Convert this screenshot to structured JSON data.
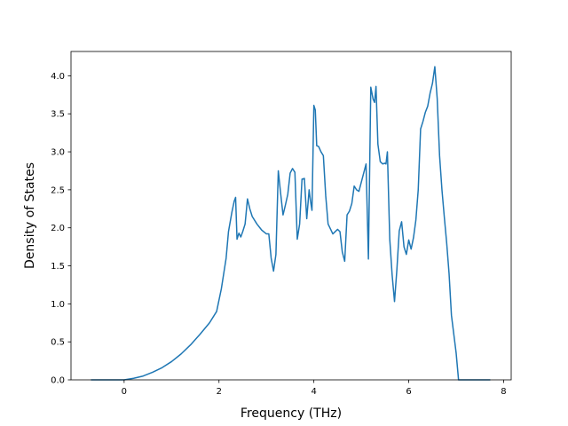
{
  "chart_data": {
    "type": "line",
    "xlabel": "Frequency (THz)",
    "ylabel": "Density of States",
    "xlim": [
      -1.12,
      8.16
    ],
    "ylim": [
      0.0,
      4.32
    ],
    "xticks": [
      0,
      2,
      4,
      6,
      8
    ],
    "yticks": [
      0.0,
      0.5,
      1.0,
      1.5,
      2.0,
      2.5,
      3.0,
      3.5,
      4.0
    ],
    "xtick_labels": [
      "0",
      "2",
      "4",
      "6",
      "8"
    ],
    "ytick_labels": [
      "0.0",
      "0.5",
      "1.0",
      "1.5",
      "2.0",
      "2.5",
      "3.0",
      "3.5",
      "4.0"
    ],
    "grid": false,
    "series": [
      {
        "color": "#1f77b4",
        "x": [
          -0.7,
          0.0,
          0.2,
          0.4,
          0.6,
          0.8,
          1.0,
          1.2,
          1.4,
          1.6,
          1.8,
          1.95,
          2.05,
          2.15,
          2.2,
          2.27,
          2.32,
          2.35,
          2.38,
          2.42,
          2.46,
          2.5,
          2.55,
          2.6,
          2.65,
          2.7,
          2.8,
          2.9,
          3.0,
          3.05,
          3.1,
          3.15,
          3.2,
          3.25,
          3.3,
          3.35,
          3.4,
          3.45,
          3.5,
          3.55,
          3.6,
          3.65,
          3.7,
          3.75,
          3.8,
          3.85,
          3.9,
          3.93,
          3.96,
          4.0,
          4.03,
          4.06,
          4.1,
          4.15,
          4.2,
          4.25,
          4.3,
          4.4,
          4.5,
          4.55,
          4.6,
          4.65,
          4.7,
          4.75,
          4.8,
          4.85,
          4.9,
          4.95,
          5.0,
          5.05,
          5.1,
          5.15,
          5.2,
          5.25,
          5.28,
          5.31,
          5.35,
          5.4,
          5.45,
          5.5,
          5.52,
          5.55,
          5.6,
          5.65,
          5.7,
          5.75,
          5.8,
          5.85,
          5.9,
          5.95,
          6.0,
          6.05,
          6.1,
          6.15,
          6.2,
          6.25,
          6.3,
          6.35,
          6.4,
          6.45,
          6.5,
          6.55,
          6.6,
          6.65,
          6.7,
          6.75,
          6.8,
          6.85,
          6.9,
          6.95,
          7.0,
          7.05,
          7.1,
          7.72
        ],
        "y": [
          0.0,
          0.0,
          0.02,
          0.05,
          0.1,
          0.16,
          0.24,
          0.34,
          0.46,
          0.6,
          0.75,
          0.9,
          1.2,
          1.6,
          1.95,
          2.2,
          2.35,
          2.4,
          1.85,
          1.93,
          1.88,
          1.95,
          2.05,
          2.38,
          2.25,
          2.15,
          2.05,
          1.97,
          1.92,
          1.92,
          1.6,
          1.43,
          1.65,
          2.75,
          2.45,
          2.17,
          2.3,
          2.44,
          2.72,
          2.78,
          2.73,
          1.85,
          2.05,
          2.64,
          2.65,
          2.12,
          2.5,
          2.35,
          2.23,
          3.61,
          3.55,
          3.08,
          3.07,
          3.0,
          2.95,
          2.42,
          2.05,
          1.92,
          1.98,
          1.95,
          1.68,
          1.56,
          2.17,
          2.22,
          2.32,
          2.55,
          2.5,
          2.48,
          2.6,
          2.72,
          2.84,
          1.59,
          3.85,
          3.69,
          3.65,
          3.86,
          3.1,
          2.87,
          2.84,
          2.85,
          2.84,
          3.0,
          1.85,
          1.38,
          1.03,
          1.45,
          1.96,
          2.08,
          1.75,
          1.65,
          1.84,
          1.72,
          1.87,
          2.1,
          2.5,
          3.3,
          3.4,
          3.52,
          3.6,
          3.77,
          3.9,
          4.12,
          3.7,
          2.95,
          2.5,
          2.14,
          1.8,
          1.4,
          0.85,
          0.6,
          0.35,
          0.0,
          0.0,
          0.0
        ]
      }
    ]
  }
}
